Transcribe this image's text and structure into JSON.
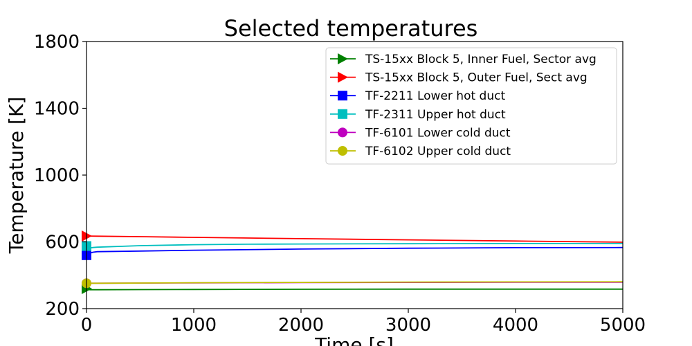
{
  "chart_data": {
    "type": "line",
    "title": "Selected temperatures",
    "xlabel": "Time [s]",
    "ylabel": "Temperature [K]",
    "xlim": [
      0,
      5000
    ],
    "ylim": [
      200,
      1800
    ],
    "xticks": [
      0,
      1000,
      2000,
      3000,
      4000,
      5000
    ],
    "yticks": [
      200,
      600,
      1000,
      1400,
      1800
    ],
    "grid": false,
    "legend_position": "top-right",
    "series": [
      {
        "name": "TS-15xx Block 5, Inner Fuel, Sector avg",
        "color": "#008000",
        "marker": "triangle-right",
        "x": [
          0,
          30,
          100,
          500,
          1000,
          2000,
          3000,
          4000,
          5000
        ],
        "y": [
          320,
          313,
          313,
          314,
          315,
          316,
          317,
          317,
          317
        ]
      },
      {
        "name": "TS-15xx Block 5, Outer Fuel, Sect avg",
        "color": "#ff0000",
        "marker": "triangle-right",
        "x": [
          0,
          100,
          500,
          1000,
          2000,
          3000,
          4000,
          5000
        ],
        "y": [
          635,
          634,
          631,
          627,
          619,
          612,
          605,
          598
        ]
      },
      {
        "name": "TF-2211 Lower hot duct",
        "color": "#0000ff",
        "marker": "square",
        "x": [
          0,
          20,
          60,
          100,
          500,
          1000,
          2000,
          3000,
          4000,
          5000
        ],
        "y": [
          520,
          530,
          538,
          541,
          545,
          550,
          557,
          562,
          565,
          566
        ]
      },
      {
        "name": "TF-2311 Upper hot duct",
        "color": "#00bfbf",
        "marker": "square",
        "x": [
          0,
          20,
          60,
          100,
          500,
          1000,
          1500,
          2000,
          3000,
          4000,
          5000
        ],
        "y": [
          575,
          562,
          566,
          568,
          577,
          583,
          586,
          587,
          589,
          590,
          590
        ]
      },
      {
        "name": "TF-6101 Lower cold duct",
        "color": "#bf00bf",
        "marker": "circle",
        "x": [
          0,
          100,
          1000,
          2000,
          3000,
          4000,
          5000
        ],
        "y": [
          352,
          352,
          354,
          356,
          357,
          358,
          358
        ]
      },
      {
        "name": "TF-6102 Upper cold duct",
        "color": "#bfbf00",
        "marker": "circle",
        "x": [
          0,
          100,
          1000,
          2000,
          3000,
          4000,
          5000
        ],
        "y": [
          352,
          352,
          355,
          357,
          359,
          360,
          361
        ]
      }
    ]
  }
}
